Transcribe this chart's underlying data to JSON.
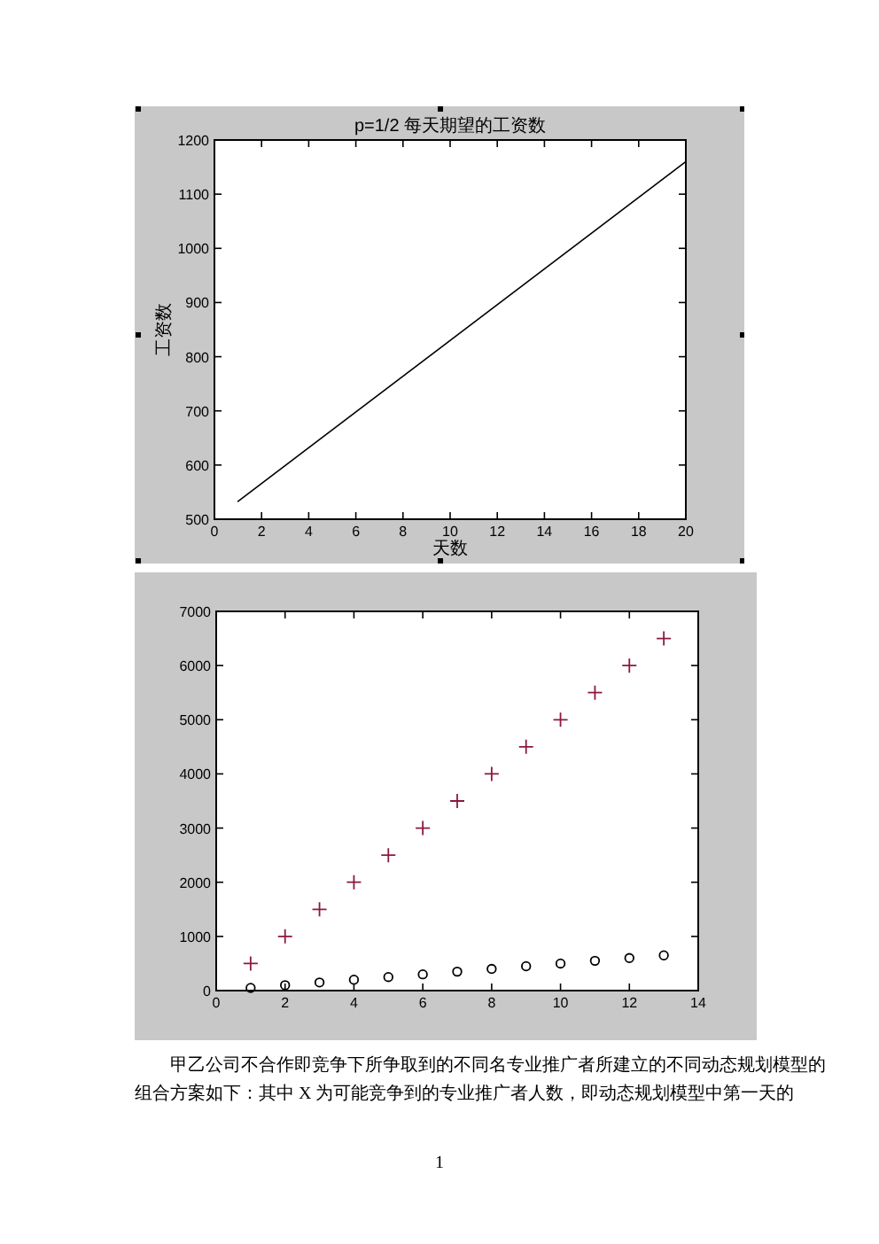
{
  "chart_data": [
    {
      "type": "line",
      "title": "p=1/2 每天期望的工资数",
      "xlabel": "天数",
      "ylabel": "工资数",
      "x": [
        1,
        20
      ],
      "values": [
        533,
        1160
      ],
      "color": "#000000",
      "marker": "none",
      "line_style": "solid",
      "xlim": [
        0,
        20
      ],
      "ylim": [
        500,
        1200
      ],
      "xticks": [
        0,
        2,
        4,
        6,
        8,
        10,
        12,
        14,
        16,
        18,
        20
      ],
      "yticks": [
        500,
        600,
        700,
        800,
        900,
        1000,
        1100,
        1200
      ]
    },
    {
      "type": "scatter",
      "x": [
        1,
        2,
        3,
        4,
        5,
        6,
        7,
        8,
        9,
        10,
        11,
        12,
        13
      ],
      "series": [
        {
          "color": "#8b1a3c",
          "marker": "cross",
          "values": [
            500,
            1000,
            1500,
            2000,
            2500,
            3000,
            3500,
            4000,
            4500,
            5000,
            5500,
            6000,
            6500
          ]
        },
        {
          "color": "#000000",
          "marker": "circle",
          "values": [
            50,
            100,
            150,
            200,
            250,
            300,
            350,
            400,
            450,
            500,
            550,
            600,
            650
          ]
        }
      ],
      "xlim": [
        0,
        14
      ],
      "ylim": [
        0,
        7000
      ],
      "xticks": [
        0,
        2,
        4,
        6,
        8,
        10,
        12,
        14
      ],
      "yticks": [
        0,
        1000,
        2000,
        3000,
        4000,
        5000,
        6000,
        7000
      ],
      "annotations": [
        "甲乙公司不合作即竞争下所争取到的不同名专业推广者所建立的不同动态规划模型的组合方案如下：其中 X 为可能竞争到的专业推广者人数，即动态规划模型中第一天的",
        "1"
      ]
    }
  ]
}
